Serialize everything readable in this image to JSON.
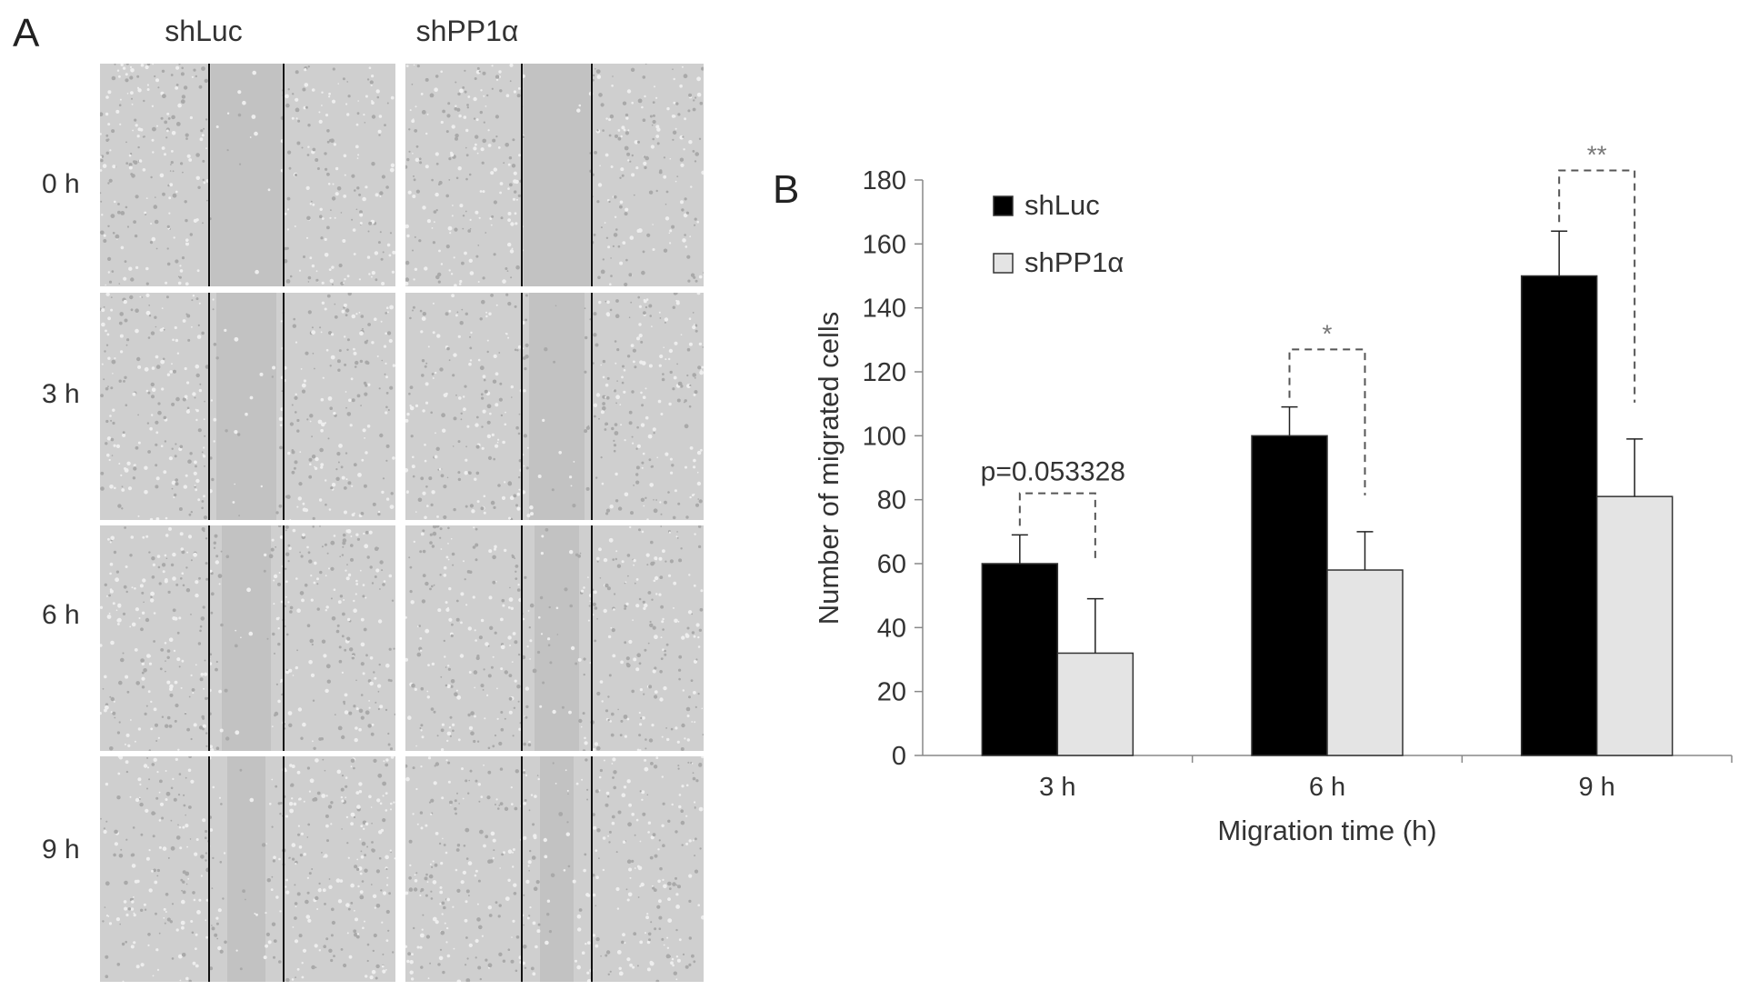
{
  "panel_a": {
    "letter": "A",
    "columns": [
      "shLuc",
      "shPP1α"
    ],
    "rows": [
      "0 h",
      "3 h",
      "6 h",
      "9 h"
    ]
  },
  "panel_b": {
    "letter": "B"
  },
  "chart_data": {
    "type": "bar",
    "title": "",
    "xlabel": "Migration time (h)",
    "ylabel": "Number of migrated cells",
    "categories": [
      "3 h",
      "6 h",
      "9 h"
    ],
    "ylim": [
      0,
      180
    ],
    "yticks": [
      0,
      20,
      40,
      60,
      80,
      100,
      120,
      140,
      160,
      180
    ],
    "series": [
      {
        "name": "shLuc",
        "color": "#000000",
        "values": [
          60,
          100,
          150
        ],
        "errors": [
          9,
          9,
          14
        ]
      },
      {
        "name": "shPP1α",
        "color": "#e4e4e4",
        "values": [
          32,
          58,
          81
        ],
        "errors": [
          17,
          12,
          18
        ]
      }
    ],
    "annotations": [
      "p=0.053328",
      "*",
      "**"
    ],
    "legend_position": "top-left",
    "grid": false
  }
}
